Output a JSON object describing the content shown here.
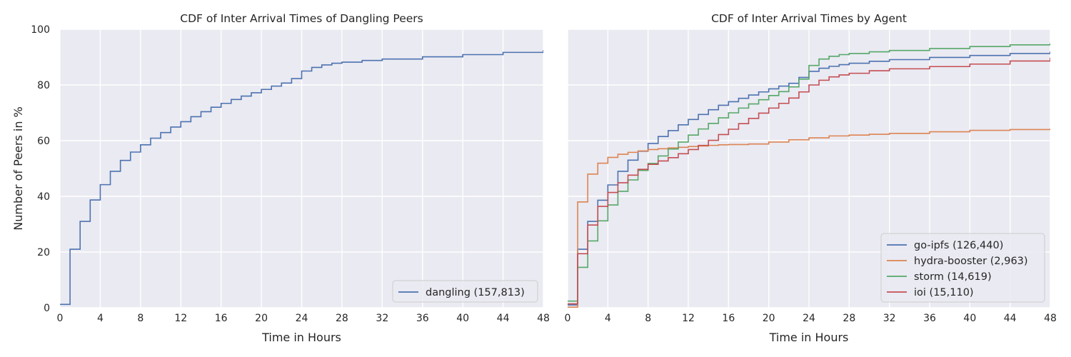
{
  "chart_data": [
    {
      "type": "line",
      "step": true,
      "title": "CDF of Inter Arrival Times of Dangling Peers",
      "xlabel": "Time in Hours",
      "ylabel": "Number of Peers in %",
      "xlim": [
        0,
        48
      ],
      "ylim": [
        0,
        100
      ],
      "xticks": [
        0,
        4,
        8,
        12,
        16,
        20,
        24,
        28,
        32,
        36,
        40,
        44,
        48
      ],
      "yticks": [
        0,
        20,
        40,
        60,
        80,
        100
      ],
      "grid": true,
      "legend_position": "lower-right",
      "series": [
        {
          "name": "dangling (157,813)",
          "color": "#4c72b0",
          "x": [
            0,
            1,
            2,
            3,
            4,
            5,
            6,
            7,
            8,
            9,
            10,
            11,
            12,
            13,
            14,
            15,
            16,
            17,
            18,
            19,
            20,
            21,
            22,
            23,
            24,
            25,
            26,
            27,
            28,
            30,
            32,
            36,
            40,
            44,
            48
          ],
          "y": [
            1.2,
            21.0,
            31.0,
            38.7,
            44.2,
            49.0,
            52.9,
            55.9,
            58.5,
            60.9,
            62.9,
            64.9,
            66.8,
            68.6,
            70.4,
            72.0,
            73.4,
            74.8,
            76.0,
            77.2,
            78.4,
            79.6,
            80.7,
            82.3,
            85.0,
            86.3,
            87.2,
            87.8,
            88.2,
            88.8,
            89.3,
            90.1,
            90.9,
            91.7,
            92.5
          ]
        }
      ]
    },
    {
      "type": "line",
      "step": true,
      "title": "CDF of Inter Arrival Times by Agent",
      "xlabel": "Time in Hours",
      "ylabel": "",
      "xlim": [
        0,
        48
      ],
      "ylim": [
        0,
        100
      ],
      "xticks": [
        0,
        4,
        8,
        12,
        16,
        20,
        24,
        28,
        32,
        36,
        40,
        44,
        48
      ],
      "yticks": [
        0,
        20,
        40,
        60,
        80,
        100
      ],
      "grid": true,
      "legend_position": "lower-right",
      "series": [
        {
          "name": "go-ipfs (126,440)",
          "color": "#4c72b0",
          "x": [
            0,
            1,
            2,
            3,
            4,
            5,
            6,
            7,
            8,
            9,
            10,
            11,
            12,
            13,
            14,
            15,
            16,
            17,
            18,
            19,
            20,
            21,
            22,
            23,
            24,
            25,
            26,
            27,
            28,
            30,
            32,
            36,
            40,
            44,
            48
          ],
          "y": [
            1.0,
            21.0,
            31.0,
            38.6,
            44.1,
            49.0,
            53.0,
            56.2,
            59.0,
            61.5,
            63.6,
            65.7,
            67.6,
            69.4,
            71.1,
            72.7,
            74.0,
            75.2,
            76.4,
            77.5,
            78.6,
            79.6,
            80.6,
            82.7,
            84.9,
            86.0,
            86.7,
            87.3,
            87.8,
            88.5,
            89.1,
            89.9,
            90.6,
            91.3,
            92.0
          ]
        },
        {
          "name": "hydra-booster (2,963)",
          "color": "#dd8452",
          "x": [
            0,
            1,
            2,
            3,
            4,
            5,
            6,
            7,
            8,
            9,
            10,
            11,
            12,
            13,
            14,
            15,
            16,
            18,
            20,
            22,
            24,
            26,
            28,
            30,
            32,
            36,
            40,
            44,
            48
          ],
          "y": [
            0.2,
            38.0,
            48.0,
            51.9,
            54.0,
            55.1,
            55.8,
            56.3,
            56.8,
            57.1,
            57.4,
            57.6,
            57.9,
            58.1,
            58.3,
            58.5,
            58.6,
            58.8,
            59.5,
            60.3,
            61.0,
            61.7,
            62.0,
            62.3,
            62.6,
            63.2,
            63.7,
            64.0,
            64.3
          ]
        },
        {
          "name": "storm (14,619)",
          "color": "#55a868",
          "x": [
            0,
            1,
            2,
            3,
            4,
            5,
            6,
            7,
            8,
            9,
            10,
            11,
            12,
            13,
            14,
            15,
            16,
            17,
            18,
            19,
            20,
            21,
            22,
            23,
            24,
            25,
            26,
            27,
            28,
            30,
            32,
            36,
            40,
            44,
            48
          ],
          "y": [
            2.4,
            14.5,
            24.0,
            31.2,
            36.9,
            41.8,
            45.9,
            49.3,
            51.8,
            54.5,
            57.0,
            59.5,
            62.0,
            64.2,
            66.2,
            68.2,
            70.0,
            71.7,
            73.2,
            74.7,
            76.2,
            77.6,
            79.3,
            82.1,
            87.0,
            89.3,
            90.3,
            90.9,
            91.3,
            91.9,
            92.4,
            93.1,
            93.8,
            94.4,
            95.0
          ]
        },
        {
          "name": "ioi (15,110)",
          "color": "#c44e52",
          "x": [
            0,
            1,
            2,
            3,
            4,
            5,
            6,
            7,
            8,
            9,
            10,
            11,
            12,
            13,
            14,
            15,
            16,
            17,
            18,
            19,
            20,
            21,
            22,
            23,
            24,
            25,
            26,
            27,
            28,
            30,
            32,
            36,
            40,
            44,
            48
          ],
          "y": [
            1.4,
            19.4,
            29.7,
            36.4,
            41.4,
            44.9,
            47.6,
            49.7,
            51.5,
            52.7,
            53.9,
            55.3,
            56.8,
            58.3,
            60.1,
            62.2,
            64.1,
            66.1,
            68.0,
            69.9,
            71.7,
            73.4,
            75.3,
            77.5,
            80.0,
            81.7,
            82.9,
            83.6,
            84.2,
            85.1,
            85.8,
            86.6,
            87.5,
            88.6,
            89.8
          ]
        }
      ]
    }
  ]
}
